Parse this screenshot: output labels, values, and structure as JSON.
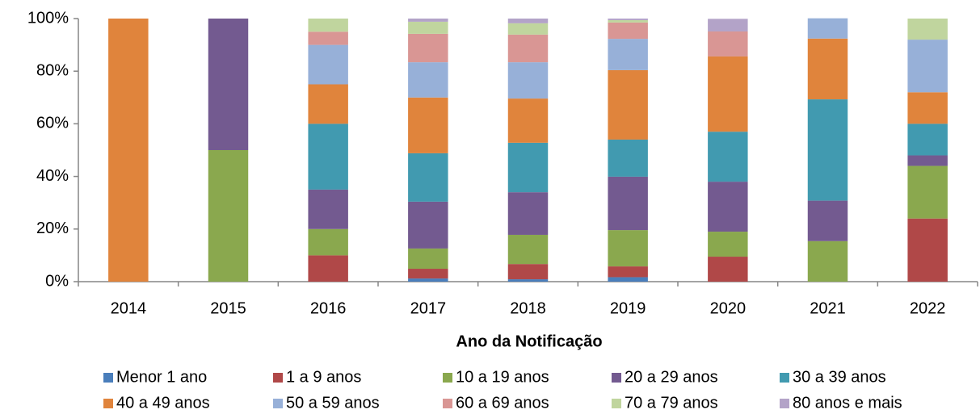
{
  "chart_data": {
    "type": "stacked_bar",
    "x_label": "Ano da Notificação",
    "categories": [
      "2014",
      "2015",
      "2016",
      "2017",
      "2018",
      "2019",
      "2020",
      "2021",
      "2022"
    ],
    "series": [
      {
        "name": "Menor 1 ano",
        "color": "#4a7ebb",
        "values": [
          0,
          0,
          0,
          1.2,
          0.9,
          1.7,
          0,
          0,
          0
        ]
      },
      {
        "name": "1 a 9 anos",
        "color": "#b04848",
        "values": [
          0,
          0,
          10,
          3.7,
          5.8,
          4.1,
          9.5,
          0,
          24
        ]
      },
      {
        "name": "10 a 19 anos",
        "color": "#8aa84e",
        "values": [
          0,
          50,
          10,
          7.7,
          11.1,
          13.8,
          9.5,
          15.4,
          20
        ]
      },
      {
        "name": "20 a 29 anos",
        "color": "#735a90",
        "values": [
          0,
          50,
          15,
          17.8,
          16.2,
          20.3,
          19,
          15.4,
          4
        ]
      },
      {
        "name": "30 a 39 anos",
        "color": "#419ab0",
        "values": [
          0,
          0,
          25,
          18.4,
          18.8,
          14.1,
          19,
          38.5,
          12
        ]
      },
      {
        "name": "40 a 49 anos",
        "color": "#e0843c",
        "values": [
          100,
          0,
          15,
          21.2,
          16.8,
          26.4,
          28.6,
          23.1,
          12
        ]
      },
      {
        "name": "50 a 59 anos",
        "color": "#97b0d8",
        "values": [
          0,
          0,
          15,
          13.4,
          13.8,
          11.9,
          0,
          7.7,
          20
        ]
      },
      {
        "name": "60 a 69 anos",
        "color": "#d99694",
        "values": [
          0,
          0,
          5,
          10.8,
          10.5,
          6.2,
          9.5,
          0,
          0
        ]
      },
      {
        "name": "70 a 79 anos",
        "color": "#c0d59e",
        "values": [
          0,
          0,
          5,
          4.6,
          4.3,
          0.9,
          0,
          0,
          8
        ]
      },
      {
        "name": "80 anos e mais",
        "color": "#b3a3c8",
        "values": [
          0,
          0,
          0,
          1.2,
          1.8,
          0.6,
          4.8,
          0,
          0
        ]
      }
    ],
    "ylim": [
      0,
      100
    ],
    "yticks": [
      {
        "value": 0,
        "label": "0%"
      },
      {
        "value": 20,
        "label": "20%"
      },
      {
        "value": 40,
        "label": "40%"
      },
      {
        "value": 60,
        "label": "60%"
      },
      {
        "value": 80,
        "label": "80%"
      },
      {
        "value": 100,
        "label": "100%"
      }
    ],
    "grid": false,
    "legend": "bottom"
  }
}
